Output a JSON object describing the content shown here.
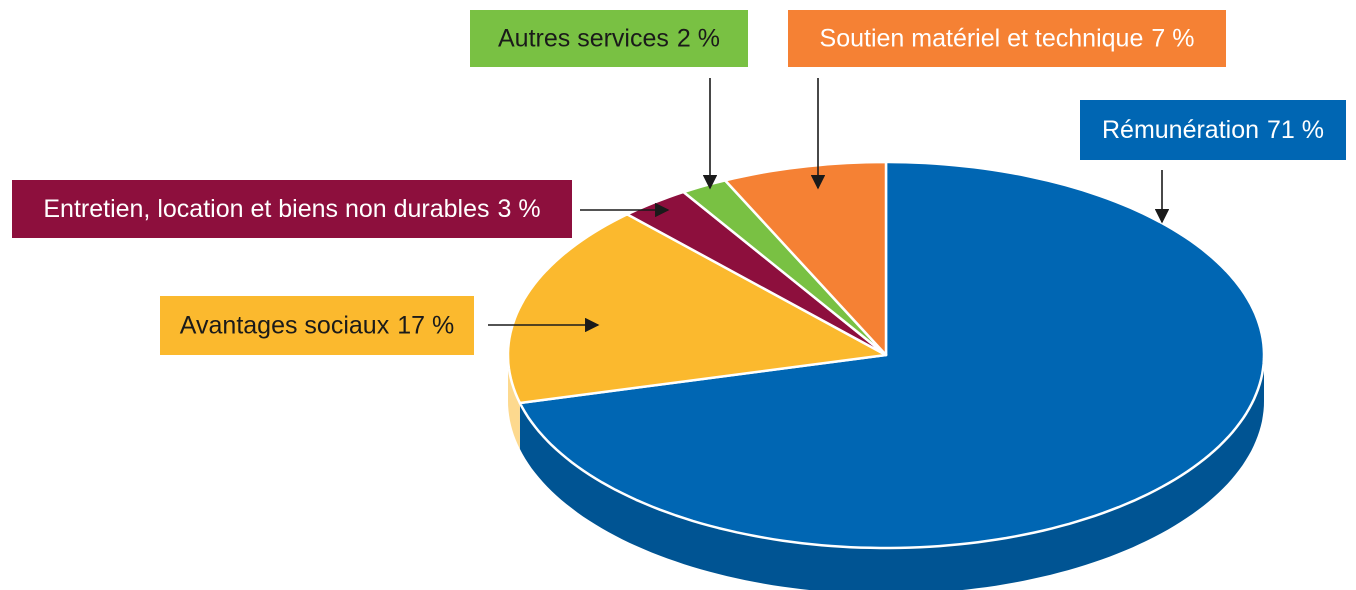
{
  "chart_data": {
    "type": "pie",
    "categories": [
      "Rémunération",
      "Avantages sociaux",
      "Entretien, location et biens non durables",
      "Autres services",
      "Soutien matériel et technique"
    ],
    "values": [
      71,
      17,
      3,
      2,
      7
    ],
    "value_labels": [
      "71 %",
      "17 %",
      "3 %",
      "2 %",
      "7 %"
    ],
    "colors": [
      "#0066b3",
      "#fbb92e",
      "#8d0f3d",
      "#79c143",
      "#f58134"
    ],
    "label_text_colors": [
      "#ffffff",
      "#1a1a1a",
      "#ffffff",
      "#1a1a1a",
      "#ffffff"
    ]
  }
}
